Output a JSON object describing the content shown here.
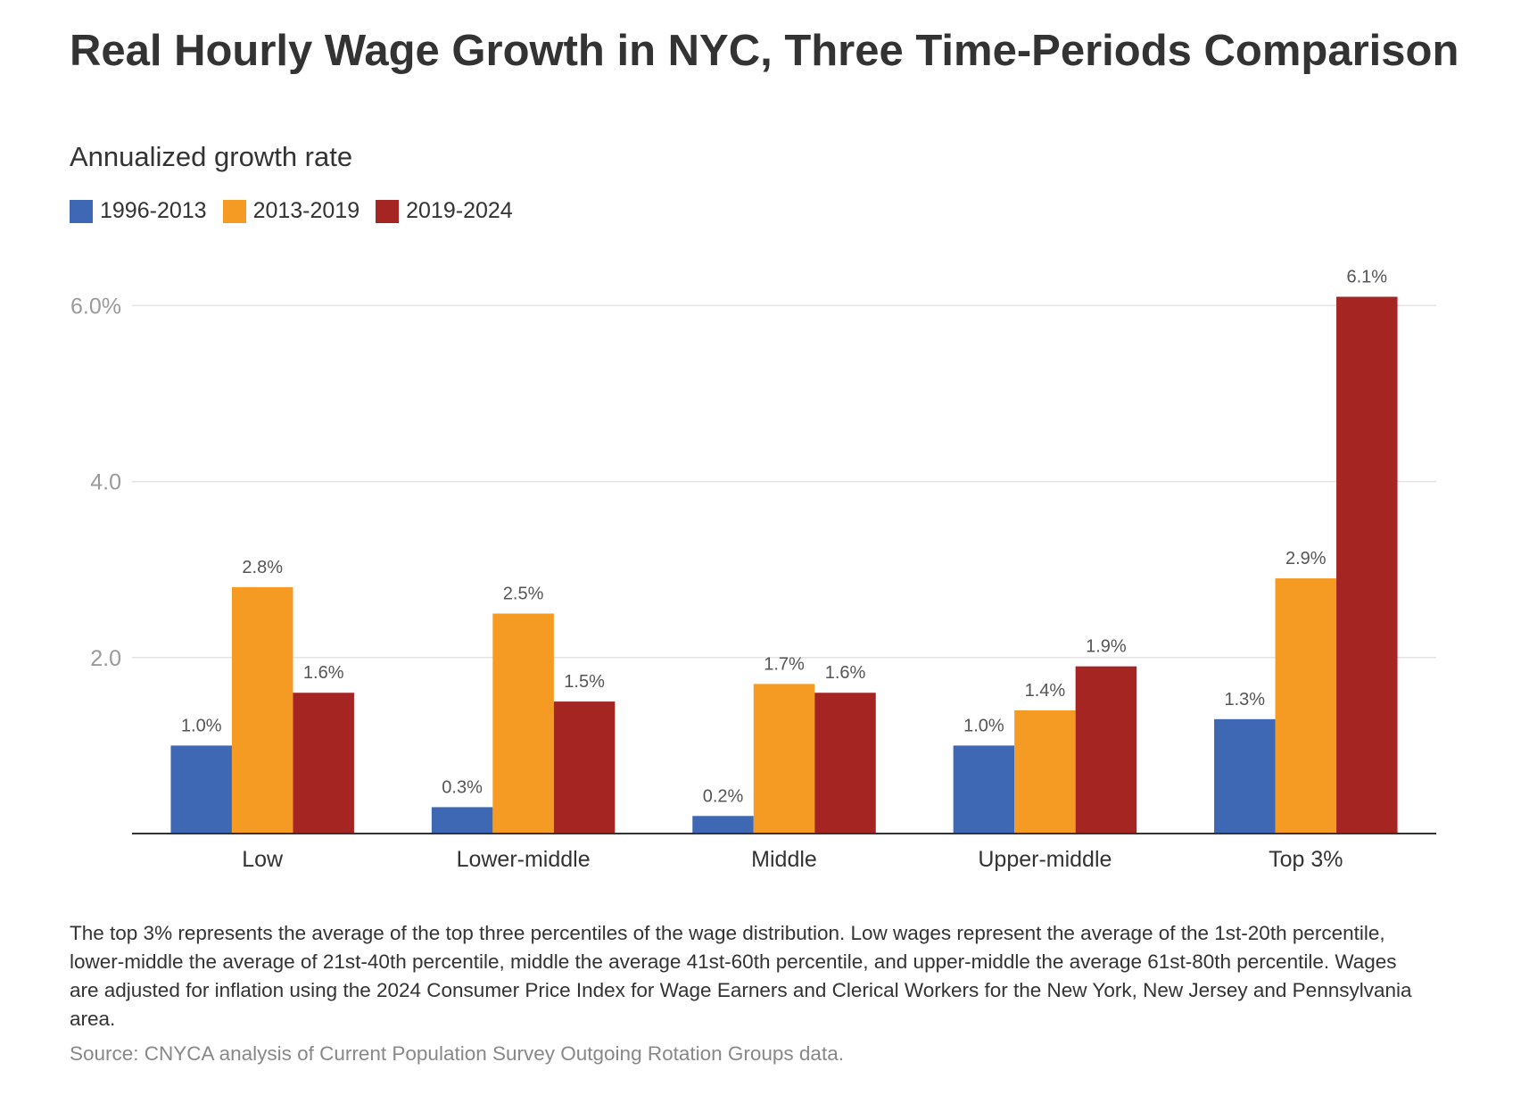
{
  "chart_data": {
    "type": "bar",
    "title": "Real Hourly Wage Growth in NYC, Three Time-Periods Comparison",
    "subtitle": "Annualized growth rate",
    "categories": [
      "Low",
      "Lower-middle",
      "Middle",
      "Upper-middle",
      "Top 3%"
    ],
    "series": [
      {
        "name": "1996-2013",
        "color": "#3e68b3",
        "values": [
          1.0,
          0.3,
          0.2,
          1.0,
          1.3
        ],
        "labels": [
          "1.0%",
          "0.3%",
          "0.2%",
          "1.0%",
          "1.3%"
        ]
      },
      {
        "name": "2013-2019",
        "color": "#f59a23",
        "values": [
          2.8,
          2.5,
          1.7,
          1.4,
          2.9
        ],
        "labels": [
          "2.8%",
          "2.5%",
          "1.7%",
          "1.4%",
          "2.9%"
        ]
      },
      {
        "name": "2019-2024",
        "color": "#a52522",
        "values": [
          1.6,
          1.5,
          1.6,
          1.9,
          6.1
        ],
        "labels": [
          "1.6%",
          "1.5%",
          "1.6%",
          "1.9%",
          "6.1%"
        ]
      }
    ],
    "yticks": [
      {
        "value": 2.0,
        "label": "2.0"
      },
      {
        "value": 4.0,
        "label": "4.0"
      },
      {
        "value": 6.0,
        "label": "6.0%"
      }
    ],
    "ylim": [
      0,
      6.1
    ],
    "grid": true,
    "legend": "top-left"
  },
  "notes": "The top 3% represents the average of the top three percentiles of the wage distribution. Low wages represent the average of the 1st-20th percentile, lower-middle the average of 21st-40th percentile, middle the average 41st-60th percentile, and upper-middle the average 61st-80th percentile. Wages are adjusted for inflation using the 2024 Consumer Price Index for Wage Earners and Clerical Workers for the New York, New Jersey and Pennsylvania area.",
  "source": "Source: CNYCA analysis of Current Population Survey Outgoing Rotation Groups data."
}
